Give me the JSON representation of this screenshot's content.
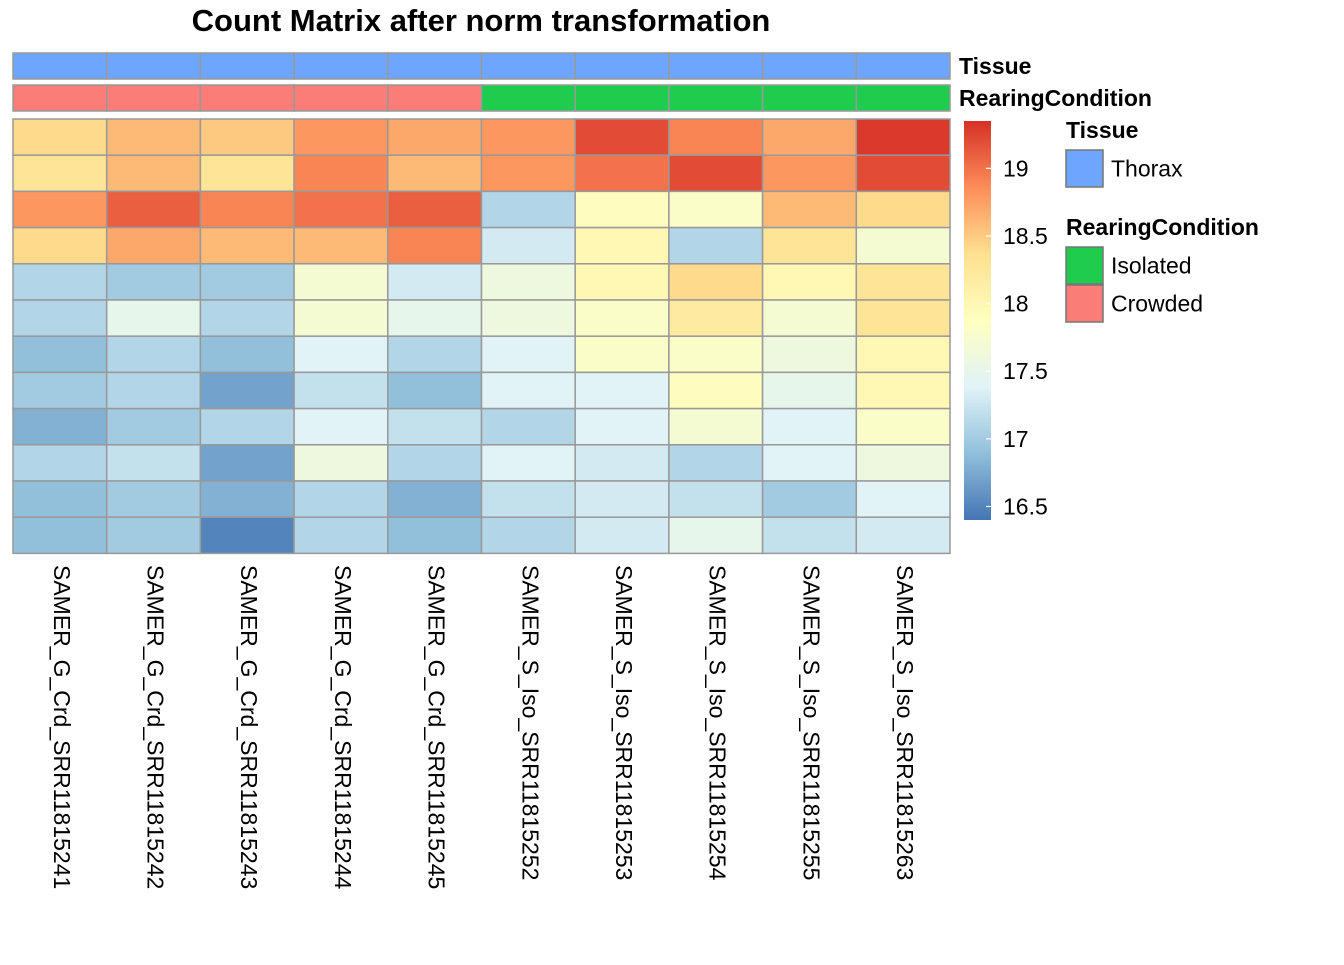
{
  "chart_data": {
    "type": "heatmap",
    "title": "Count Matrix after norm transformation",
    "columns": [
      "SAMER_G_Crd_SRR11815241",
      "SAMER_G_Crd_SRR11815242",
      "SAMER_G_Crd_SRR11815243",
      "SAMER_G_Crd_SRR11815244",
      "SAMER_G_Crd_SRR11815245",
      "SAMER_S_Iso_SRR11815252",
      "SAMER_S_Iso_SRR11815253",
      "SAMER_S_Iso_SRR11815254",
      "SAMER_S_Iso_SRR11815255",
      "SAMER_S_Iso_SRR11815263"
    ],
    "values": [
      [
        18.4,
        18.6,
        18.5,
        18.8,
        18.7,
        18.8,
        19.2,
        18.9,
        18.7,
        19.3
      ],
      [
        18.3,
        18.6,
        18.3,
        18.9,
        18.6,
        18.8,
        19.0,
        19.2,
        18.8,
        19.2
      ],
      [
        18.8,
        19.1,
        18.9,
        19.0,
        19.1,
        17.1,
        17.9,
        17.8,
        18.6,
        18.4
      ],
      [
        18.4,
        18.7,
        18.6,
        18.6,
        18.9,
        17.3,
        18.0,
        17.1,
        18.3,
        17.7
      ],
      [
        17.1,
        17.0,
        17.0,
        17.7,
        17.3,
        17.6,
        18.0,
        18.4,
        18.0,
        18.3
      ],
      [
        17.1,
        17.5,
        17.1,
        17.7,
        17.5,
        17.6,
        17.8,
        18.2,
        17.7,
        18.3
      ],
      [
        16.9,
        17.1,
        16.9,
        17.4,
        17.1,
        17.4,
        17.8,
        17.8,
        17.6,
        18.0
      ],
      [
        17.0,
        17.1,
        16.7,
        17.2,
        16.9,
        17.4,
        17.4,
        17.9,
        17.5,
        18.0
      ],
      [
        16.8,
        17.0,
        17.1,
        17.4,
        17.2,
        17.1,
        17.4,
        17.7,
        17.4,
        17.8
      ],
      [
        17.1,
        17.2,
        16.7,
        17.6,
        17.1,
        17.4,
        17.3,
        17.1,
        17.4,
        17.6
      ],
      [
        16.9,
        17.0,
        16.8,
        17.1,
        16.8,
        17.2,
        17.3,
        17.2,
        17.0,
        17.4
      ],
      [
        16.9,
        17.0,
        16.5,
        17.1,
        16.9,
        17.1,
        17.3,
        17.5,
        17.2,
        17.3
      ]
    ],
    "annotation_rows": [
      {
        "name": "Tissue",
        "values": [
          "Thorax",
          "Thorax",
          "Thorax",
          "Thorax",
          "Thorax",
          "Thorax",
          "Thorax",
          "Thorax",
          "Thorax",
          "Thorax"
        ]
      },
      {
        "name": "RearingCondition",
        "values": [
          "Crowded",
          "Crowded",
          "Crowded",
          "Crowded",
          "Crowded",
          "Isolated",
          "Isolated",
          "Isolated",
          "Isolated",
          "Isolated"
        ]
      }
    ],
    "color_scale": {
      "min": 16.4,
      "max": 19.35,
      "ticks": [
        "16.5",
        "17",
        "17.5",
        "18",
        "18.5",
        "19"
      ],
      "stops": [
        "#4575b4",
        "#91bfdb",
        "#e0f3f8",
        "#ffffbf",
        "#fee090",
        "#fc8d59",
        "#d73027"
      ]
    },
    "legends": [
      {
        "title": "Tissue",
        "items": [
          {
            "label": "Thorax",
            "color": "#6ea6ff"
          }
        ]
      },
      {
        "title": "RearingCondition",
        "items": [
          {
            "label": "Isolated",
            "color": "#1fcd4e"
          },
          {
            "label": "Crowded",
            "color": "#fb7d78"
          }
        ]
      }
    ],
    "cell_border_color": "#999999"
  }
}
